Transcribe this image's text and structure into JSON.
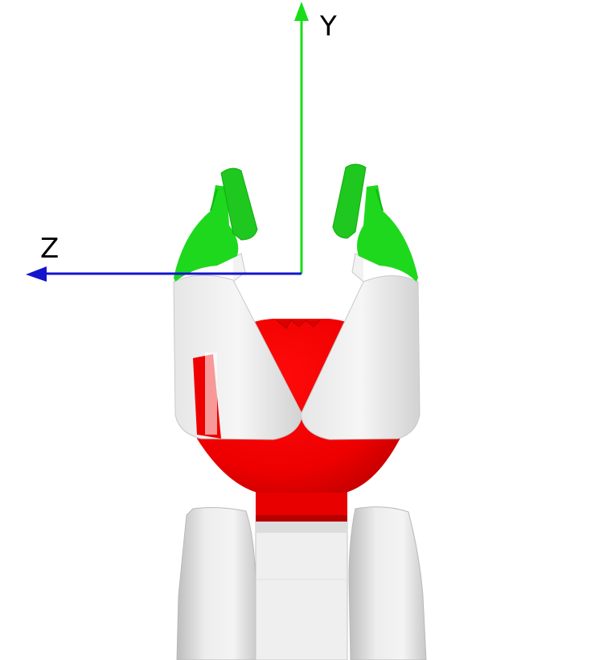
{
  "axes": {
    "y_label": "Y",
    "z_label": "Z",
    "y_color": "#19dd19",
    "z_color": "#1414cc"
  },
  "colors": {
    "background": "#ffffff",
    "fingertip": "#1ed81e",
    "fingertip_shade": "#14b414",
    "palm_red": "#ee0000",
    "palm_red_shade": "#c80000",
    "shell_white": "#eeeeee",
    "shell_shade": "#cfcfcf",
    "link_gray": "#d8d8d8"
  }
}
